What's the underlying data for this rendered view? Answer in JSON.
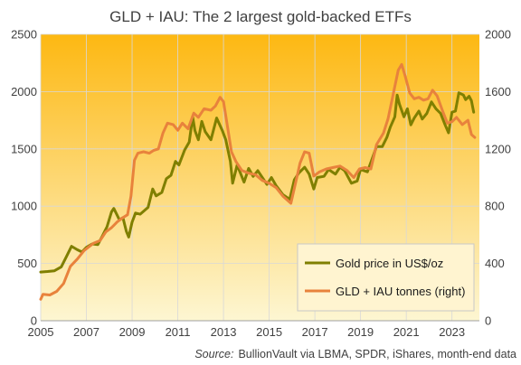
{
  "chart_data": {
    "type": "line",
    "title": "GLD + IAU: The 2 largest gold-backed ETFs",
    "source_label": "Source:",
    "source_text": "BullionVault via LBMA, SPDR, iShares, month-end data",
    "xlim": [
      2005,
      2024.2
    ],
    "x_ticks": [
      2005,
      2007,
      2009,
      2011,
      2013,
      2015,
      2017,
      2019,
      2021,
      2023
    ],
    "y_left": {
      "lim": [
        0,
        2500
      ],
      "ticks": [
        0,
        500,
        1000,
        1500,
        2000,
        2500
      ]
    },
    "y_right": {
      "lim": [
        0,
        2000
      ],
      "ticks": [
        0,
        400,
        800,
        1200,
        1600,
        2000
      ]
    },
    "grid": true,
    "legend_position": "bottom-right",
    "series": [
      {
        "name": "Gold price in US$/oz",
        "axis": "left",
        "color": "#7f7f00",
        "points": [
          [
            2005.0,
            425
          ],
          [
            2005.3,
            430
          ],
          [
            2005.6,
            436
          ],
          [
            2005.9,
            470
          ],
          [
            2006.1,
            550
          ],
          [
            2006.35,
            650
          ],
          [
            2006.6,
            620
          ],
          [
            2006.8,
            600
          ],
          [
            2007.0,
            640
          ],
          [
            2007.25,
            670
          ],
          [
            2007.5,
            665
          ],
          [
            2007.7,
            740
          ],
          [
            2007.9,
            820
          ],
          [
            2008.1,
            950
          ],
          [
            2008.2,
            980
          ],
          [
            2008.45,
            880
          ],
          [
            2008.6,
            900
          ],
          [
            2008.75,
            780
          ],
          [
            2008.85,
            730
          ],
          [
            2009.0,
            860
          ],
          [
            2009.15,
            940
          ],
          [
            2009.35,
            930
          ],
          [
            2009.5,
            955
          ],
          [
            2009.7,
            990
          ],
          [
            2009.9,
            1150
          ],
          [
            2010.05,
            1090
          ],
          [
            2010.3,
            1120
          ],
          [
            2010.5,
            1240
          ],
          [
            2010.7,
            1270
          ],
          [
            2010.9,
            1390
          ],
          [
            2011.05,
            1360
          ],
          [
            2011.3,
            1490
          ],
          [
            2011.5,
            1560
          ],
          [
            2011.65,
            1780
          ],
          [
            2011.75,
            1660
          ],
          [
            2011.9,
            1580
          ],
          [
            2012.05,
            1740
          ],
          [
            2012.2,
            1650
          ],
          [
            2012.45,
            1580
          ],
          [
            2012.7,
            1770
          ],
          [
            2012.95,
            1660
          ],
          [
            2013.1,
            1580
          ],
          [
            2013.3,
            1390
          ],
          [
            2013.4,
            1200
          ],
          [
            2013.6,
            1360
          ],
          [
            2013.9,
            1210
          ],
          [
            2014.1,
            1330
          ],
          [
            2014.3,
            1260
          ],
          [
            2014.5,
            1310
          ],
          [
            2014.9,
            1190
          ],
          [
            2015.1,
            1250
          ],
          [
            2015.3,
            1180
          ],
          [
            2015.6,
            1100
          ],
          [
            2015.9,
            1060
          ],
          [
            2016.1,
            1230
          ],
          [
            2016.3,
            1290
          ],
          [
            2016.55,
            1340
          ],
          [
            2016.75,
            1280
          ],
          [
            2016.95,
            1150
          ],
          [
            2017.1,
            1250
          ],
          [
            2017.4,
            1260
          ],
          [
            2017.6,
            1320
          ],
          [
            2017.9,
            1280
          ],
          [
            2018.1,
            1340
          ],
          [
            2018.3,
            1310
          ],
          [
            2018.6,
            1200
          ],
          [
            2018.85,
            1220
          ],
          [
            2019.0,
            1320
          ],
          [
            2019.3,
            1300
          ],
          [
            2019.5,
            1410
          ],
          [
            2019.7,
            1520
          ],
          [
            2019.95,
            1520
          ],
          [
            2020.15,
            1600
          ],
          [
            2020.3,
            1690
          ],
          [
            2020.5,
            1780
          ],
          [
            2020.6,
            1970
          ],
          [
            2020.7,
            1890
          ],
          [
            2020.9,
            1780
          ],
          [
            2021.05,
            1850
          ],
          [
            2021.2,
            1710
          ],
          [
            2021.35,
            1770
          ],
          [
            2021.55,
            1830
          ],
          [
            2021.7,
            1760
          ],
          [
            2021.9,
            1810
          ],
          [
            2022.1,
            1910
          ],
          [
            2022.3,
            1850
          ],
          [
            2022.5,
            1810
          ],
          [
            2022.7,
            1710
          ],
          [
            2022.85,
            1640
          ],
          [
            2023.0,
            1820
          ],
          [
            2023.15,
            1830
          ],
          [
            2023.3,
            1990
          ],
          [
            2023.5,
            1970
          ],
          [
            2023.6,
            1930
          ],
          [
            2023.75,
            1960
          ],
          [
            2023.85,
            1920
          ],
          [
            2023.95,
            1820
          ]
        ]
      },
      {
        "name": "GLD + IAU tonnes (right)",
        "axis": "right",
        "color": "#e8823c",
        "points": [
          [
            2005.0,
            150
          ],
          [
            2005.1,
            185
          ],
          [
            2005.4,
            180
          ],
          [
            2005.7,
            205
          ],
          [
            2006.0,
            260
          ],
          [
            2006.3,
            380
          ],
          [
            2006.6,
            430
          ],
          [
            2006.9,
            490
          ],
          [
            2007.3,
            540
          ],
          [
            2007.6,
            560
          ],
          [
            2007.85,
            620
          ],
          [
            2008.1,
            650
          ],
          [
            2008.35,
            690
          ],
          [
            2008.6,
            720
          ],
          [
            2008.8,
            740
          ],
          [
            2008.95,
            870
          ],
          [
            2009.1,
            1120
          ],
          [
            2009.25,
            1170
          ],
          [
            2009.5,
            1180
          ],
          [
            2009.75,
            1170
          ],
          [
            2009.95,
            1190
          ],
          [
            2010.15,
            1200
          ],
          [
            2010.35,
            1310
          ],
          [
            2010.55,
            1380
          ],
          [
            2010.8,
            1370
          ],
          [
            2011.0,
            1330
          ],
          [
            2011.2,
            1380
          ],
          [
            2011.45,
            1340
          ],
          [
            2011.7,
            1450
          ],
          [
            2011.9,
            1420
          ],
          [
            2012.15,
            1480
          ],
          [
            2012.45,
            1470
          ],
          [
            2012.65,
            1500
          ],
          [
            2012.85,
            1560
          ],
          [
            2013.0,
            1530
          ],
          [
            2013.15,
            1380
          ],
          [
            2013.35,
            1180
          ],
          [
            2013.55,
            1110
          ],
          [
            2013.8,
            1050
          ],
          [
            2014.1,
            1030
          ],
          [
            2014.4,
            1020
          ],
          [
            2014.7,
            980
          ],
          [
            2015.0,
            960
          ],
          [
            2015.3,
            930
          ],
          [
            2015.6,
            870
          ],
          [
            2015.95,
            820
          ],
          [
            2016.15,
            960
          ],
          [
            2016.35,
            1100
          ],
          [
            2016.55,
            1180
          ],
          [
            2016.75,
            1170
          ],
          [
            2016.95,
            1010
          ],
          [
            2017.2,
            1040
          ],
          [
            2017.5,
            1060
          ],
          [
            2017.8,
            1070
          ],
          [
            2018.1,
            1080
          ],
          [
            2018.4,
            1050
          ],
          [
            2018.7,
            1000
          ],
          [
            2018.95,
            1060
          ],
          [
            2019.2,
            1070
          ],
          [
            2019.45,
            1060
          ],
          [
            2019.7,
            1230
          ],
          [
            2020.0,
            1310
          ],
          [
            2020.2,
            1410
          ],
          [
            2020.45,
            1600
          ],
          [
            2020.65,
            1750
          ],
          [
            2020.8,
            1790
          ],
          [
            2020.95,
            1710
          ],
          [
            2021.15,
            1590
          ],
          [
            2021.35,
            1550
          ],
          [
            2021.55,
            1560
          ],
          [
            2021.75,
            1540
          ],
          [
            2021.95,
            1550
          ],
          [
            2022.15,
            1610
          ],
          [
            2022.35,
            1570
          ],
          [
            2022.6,
            1460
          ],
          [
            2022.8,
            1380
          ],
          [
            2023.0,
            1390
          ],
          [
            2023.2,
            1420
          ],
          [
            2023.45,
            1370
          ],
          [
            2023.7,
            1400
          ],
          [
            2023.85,
            1300
          ],
          [
            2024.0,
            1280
          ]
        ]
      }
    ]
  }
}
